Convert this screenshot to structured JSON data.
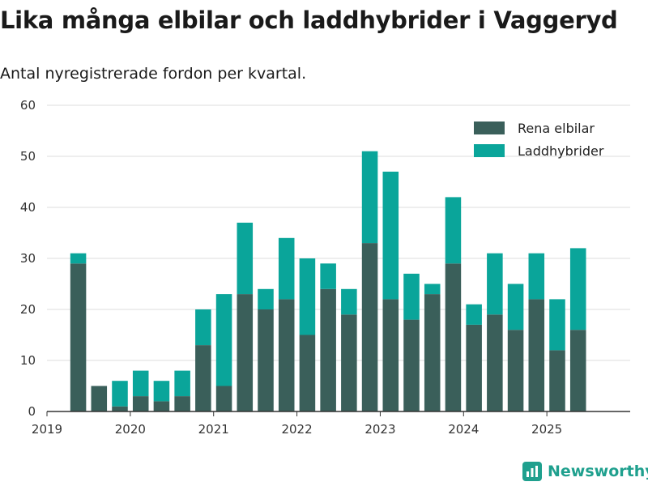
{
  "title": "Lika många elbilar och laddhybrider i Vaggeryd",
  "subtitle": "Antal nyregistrerade fordon per kvartal.",
  "brand": {
    "name": "Newsworthy",
    "icon": "newsworthy-logo-icon",
    "color": "#1fa08e"
  },
  "colors": {
    "rena_elbilar": "#3a5f5a",
    "laddhybrider": "#0aa59a",
    "grid": "#dddddd",
    "axis": "#333333"
  },
  "chart_data": {
    "type": "bar",
    "stacked": true,
    "x": [
      "2019Q1",
      "2019Q2",
      "2019Q3",
      "2019Q4",
      "2020Q1",
      "2020Q2",
      "2020Q3",
      "2020Q4",
      "2021Q1",
      "2021Q2",
      "2021Q3",
      "2021Q4",
      "2022Q1",
      "2022Q2",
      "2022Q3",
      "2022Q4",
      "2023Q1",
      "2023Q2",
      "2023Q3",
      "2023Q4",
      "2024Q1",
      "2024Q2",
      "2024Q3",
      "2024Q4",
      "2025Q1",
      "2025Q2",
      "2025Q3",
      "2025Q4"
    ],
    "series": [
      {
        "name": "Rena elbilar",
        "values": [
          0,
          29,
          5,
          1,
          3,
          2,
          3,
          13,
          5,
          23,
          20,
          22,
          15,
          24,
          19,
          33,
          22,
          18,
          23,
          29,
          17,
          19,
          16,
          22,
          12,
          16,
          0,
          0
        ]
      },
      {
        "name": "Laddhybrider",
        "values": [
          0,
          2,
          0,
          5,
          5,
          4,
          5,
          7,
          18,
          14,
          4,
          12,
          15,
          5,
          5,
          18,
          25,
          9,
          2,
          13,
          4,
          12,
          9,
          9,
          10,
          16,
          0,
          0
        ]
      }
    ],
    "x_tick_labels": [
      "2019",
      "2020",
      "2021",
      "2022",
      "2023",
      "2024",
      "2025"
    ],
    "y_ticks": [
      0,
      10,
      20,
      30,
      40,
      50,
      60
    ],
    "ylim": [
      0,
      60
    ],
    "grid": true,
    "legend": "top-right",
    "xlabel": "",
    "ylabel": ""
  }
}
